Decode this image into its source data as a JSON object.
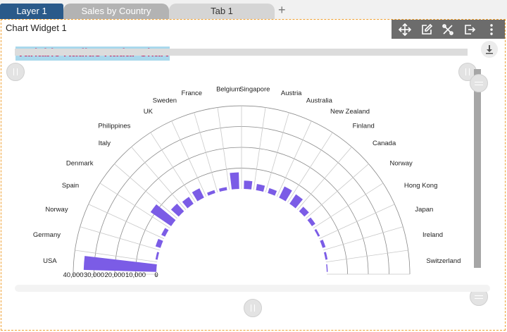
{
  "tabs": [
    {
      "label": "Layer 1"
    },
    {
      "label": "Sales by Country"
    },
    {
      "label": "Tab 1"
    }
  ],
  "add_tab_label": "+",
  "widget": {
    "title": "Chart Widget 1",
    "toolbar_icons": [
      "move-icon",
      "edit-icon",
      "tools-icon",
      "export-icon",
      "more-vertical-icon"
    ],
    "download_icon": "download-icon"
  },
  "colors": {
    "bar": "#7b5ce6",
    "tab_active": "#2a5a8a",
    "title_text": "#c2185b",
    "title_bg": "#a9d8ec",
    "border": "#f0a030"
  },
  "chart_data": {
    "type": "bar",
    "title": "Variable Radius Radar Chart",
    "subtype": "variable-radius-radar",
    "categories": [
      "USA",
      "Germany",
      "Norway",
      "Spain",
      "Denmark",
      "Italy",
      "Philippines",
      "UK",
      "Sweden",
      "France",
      "Belgium",
      "Singapore",
      "Austria",
      "Australia",
      "New Zealand",
      "Finland",
      "Canada",
      "Norway",
      "Hong Kong",
      "Japan",
      "Ireland",
      "Switzerland"
    ],
    "values": [
      35000,
      1000,
      2500,
      2000,
      12000,
      5000,
      4000,
      5000,
      1500,
      1500,
      8000,
      4000,
      3000,
      2500,
      6000,
      5500,
      3000,
      2000,
      1000,
      1500,
      1000,
      500
    ],
    "value_axis_ticks": [
      "40,000",
      "30,000",
      "20,000",
      "10,000",
      "0"
    ],
    "value_axis_range": [
      0,
      40000
    ],
    "start_angle_deg": 180,
    "end_angle_deg": 360,
    "grid": true
  }
}
